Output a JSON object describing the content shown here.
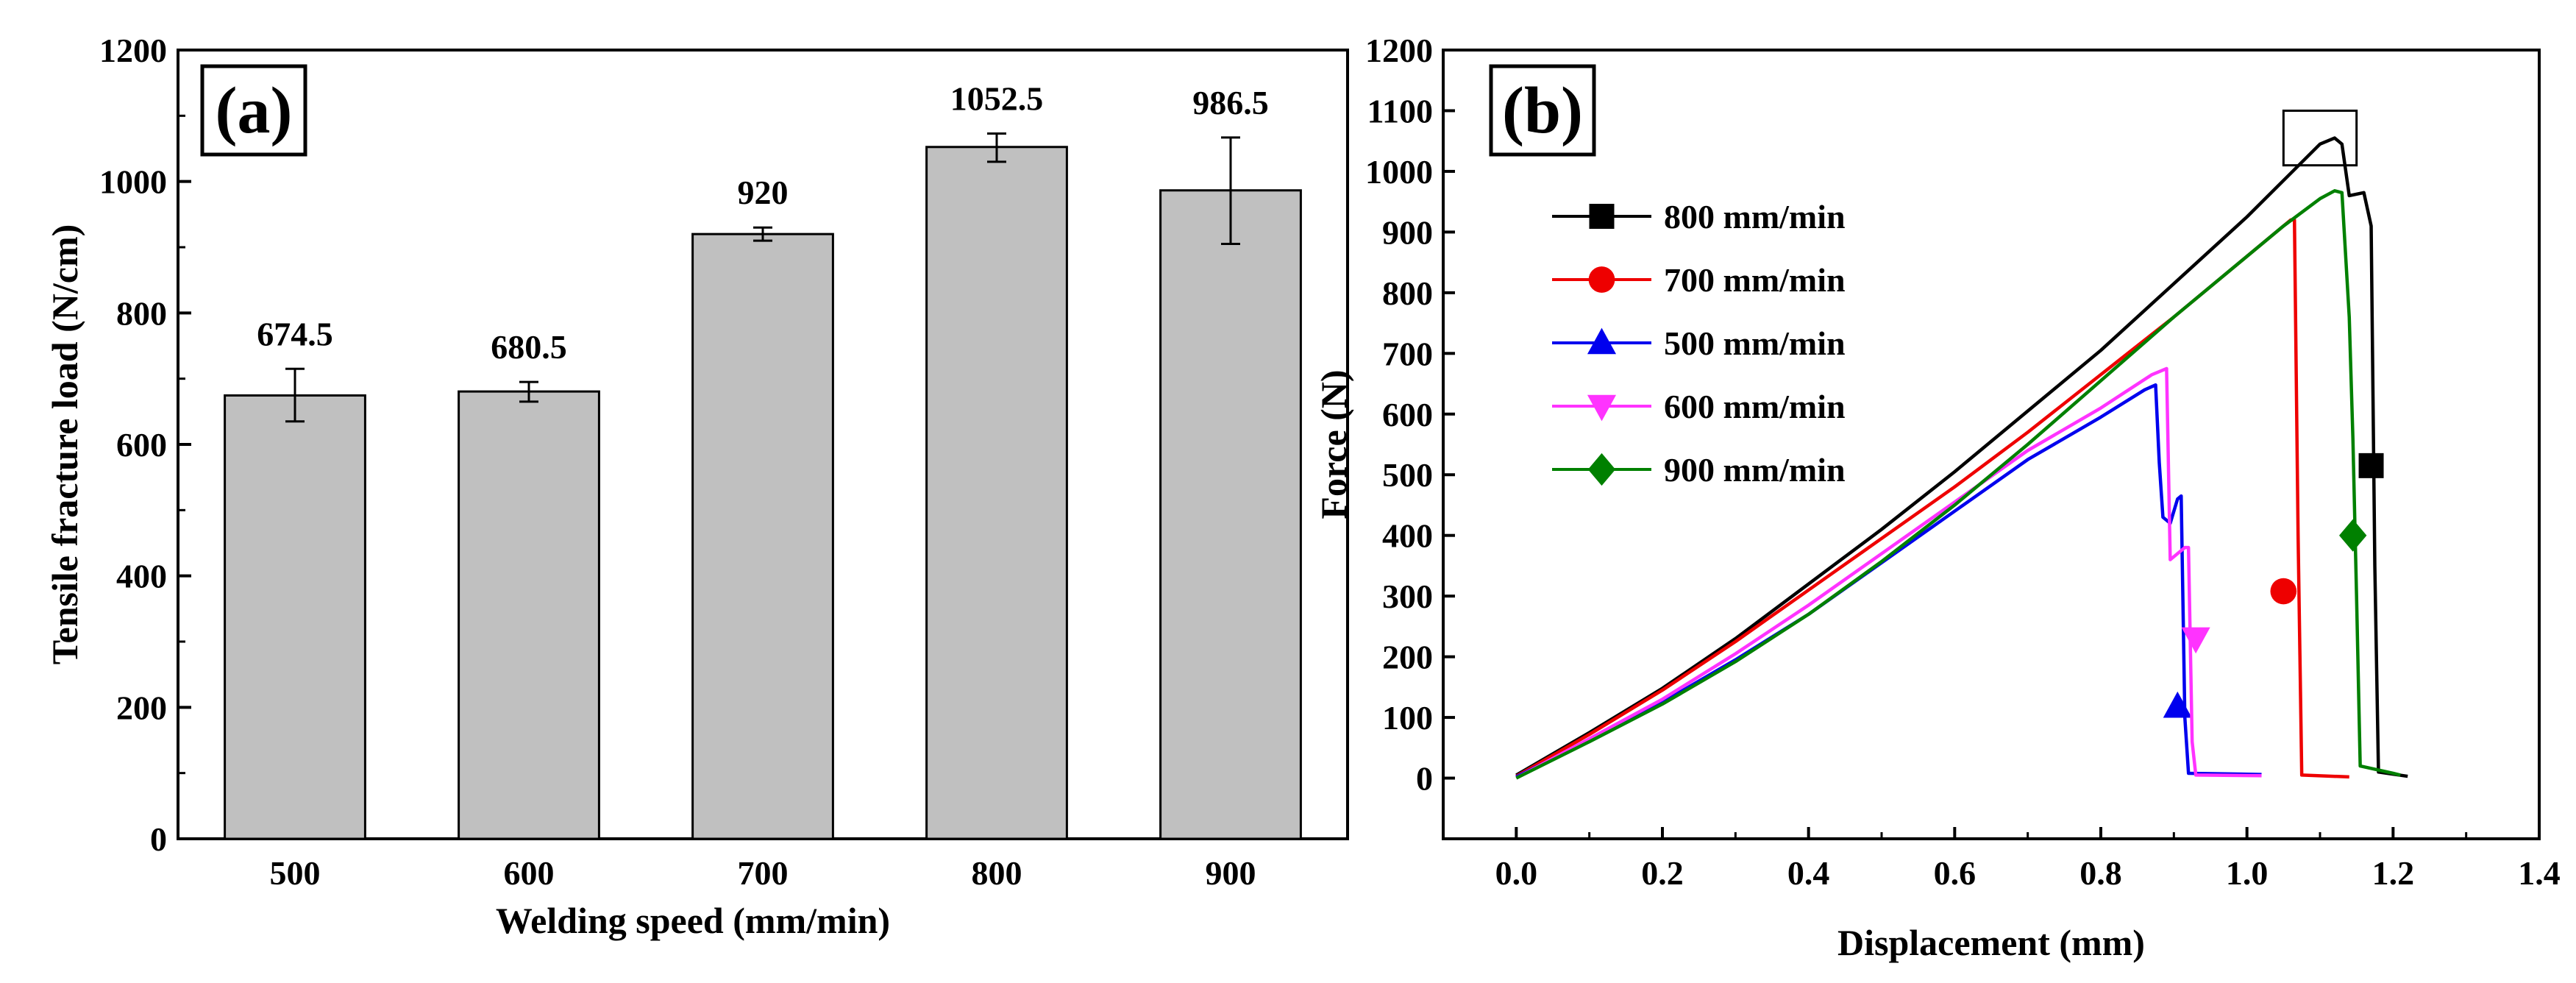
{
  "chart_data": [
    {
      "panel": "(a)",
      "type": "bar",
      "categories": [
        "500",
        "600",
        "700",
        "800",
        "900"
      ],
      "values": [
        674.5,
        680.5,
        920,
        1052.5,
        986.5
      ],
      "value_labels": [
        "674.5",
        "680.5",
        "920",
        "1052.5",
        "986.5"
      ],
      "error_low": [
        635,
        665,
        910,
        1030,
        905
      ],
      "error_high": [
        715,
        695,
        930,
        1073,
        1067
      ],
      "bar_color": "#c0c0c0",
      "xlabel": "Welding speed (mm/min)",
      "ylabel": "Tensile fracture load (N/cm)",
      "ylim": [
        0,
        1200
      ],
      "yticks": [
        "0",
        "200",
        "400",
        "600",
        "800",
        "1000",
        "1200"
      ]
    },
    {
      "panel": "(b)",
      "type": "line",
      "xlabel": "Displacement (mm)",
      "ylabel": "Force (N)",
      "xlim": [
        -0.1,
        1.4
      ],
      "ylim": [
        -100,
        1200
      ],
      "xticks": [
        "0.0",
        "0.2",
        "0.4",
        "0.6",
        "0.8",
        "1.0",
        "1.2",
        "1.4"
      ],
      "yticks": [
        "0",
        "100",
        "200",
        "300",
        "400",
        "500",
        "600",
        "700",
        "800",
        "900",
        "1000",
        "1100",
        "1200"
      ],
      "series": [
        {
          "name": "800 mm/min",
          "color": "#000000",
          "marker": "square",
          "marker_at": [
            1.17,
            515
          ],
          "points": [
            [
              0,
              5
            ],
            [
              0.1,
              75
            ],
            [
              0.2,
              148
            ],
            [
              0.3,
              230
            ],
            [
              0.4,
              320
            ],
            [
              0.5,
              410
            ],
            [
              0.6,
              505
            ],
            [
              0.7,
              605
            ],
            [
              0.8,
              705
            ],
            [
              0.9,
              815
            ],
            [
              1.0,
              925
            ],
            [
              1.05,
              985
            ],
            [
              1.1,
              1045
            ],
            [
              1.12,
              1055
            ],
            [
              1.13,
              1045
            ],
            [
              1.14,
              960
            ],
            [
              1.16,
              965
            ],
            [
              1.17,
              910
            ],
            [
              1.175,
              350
            ],
            [
              1.18,
              10
            ],
            [
              1.22,
              3
            ]
          ]
        },
        {
          "name": "700 mm/min",
          "color": "#ee0000",
          "marker": "circle",
          "marker_at": [
            1.05,
            308
          ],
          "points": [
            [
              0,
              3
            ],
            [
              0.1,
              72
            ],
            [
              0.2,
              145
            ],
            [
              0.3,
              225
            ],
            [
              0.4,
              310
            ],
            [
              0.5,
              395
            ],
            [
              0.6,
              480
            ],
            [
              0.7,
              570
            ],
            [
              0.8,
              665
            ],
            [
              0.9,
              760
            ],
            [
              1.0,
              860
            ],
            [
              1.06,
              920
            ],
            [
              1.065,
              920
            ],
            [
              1.07,
              400
            ],
            [
              1.075,
              5
            ],
            [
              1.14,
              2
            ]
          ]
        },
        {
          "name": "500 mm/min",
          "color": "#0000ee",
          "marker": "triangle-up",
          "marker_at": [
            0.905,
            118
          ],
          "points": [
            [
              0,
              2
            ],
            [
              0.1,
              62
            ],
            [
              0.2,
              125
            ],
            [
              0.3,
              195
            ],
            [
              0.4,
              270
            ],
            [
              0.5,
              355
            ],
            [
              0.6,
              440
            ],
            [
              0.7,
              525
            ],
            [
              0.8,
              595
            ],
            [
              0.86,
              640
            ],
            [
              0.875,
              648
            ],
            [
              0.88,
              520
            ],
            [
              0.885,
              430
            ],
            [
              0.895,
              420
            ],
            [
              0.905,
              460
            ],
            [
              0.91,
              465
            ],
            [
              0.915,
              100
            ],
            [
              0.92,
              8
            ],
            [
              1.02,
              6
            ]
          ]
        },
        {
          "name": "600 mm/min",
          "color": "#ff33ff",
          "marker": "triangle-down",
          "marker_at": [
            0.93,
            230
          ],
          "points": [
            [
              0,
              0
            ],
            [
              0.1,
              65
            ],
            [
              0.2,
              130
            ],
            [
              0.3,
              205
            ],
            [
              0.4,
              285
            ],
            [
              0.5,
              370
            ],
            [
              0.6,
              455
            ],
            [
              0.7,
              540
            ],
            [
              0.8,
              610
            ],
            [
              0.87,
              665
            ],
            [
              0.89,
              675
            ],
            [
              0.895,
              360
            ],
            [
              0.905,
              370
            ],
            [
              0.915,
              380
            ],
            [
              0.92,
              380
            ],
            [
              0.925,
              60
            ],
            [
              0.93,
              5
            ],
            [
              1.02,
              4
            ]
          ]
        },
        {
          "name": "900 mm/min",
          "color": "#008000",
          "marker": "diamond",
          "marker_at": [
            1.145,
            400
          ],
          "points": [
            [
              0,
              0
            ],
            [
              0.1,
              60
            ],
            [
              0.2,
              122
            ],
            [
              0.3,
              192
            ],
            [
              0.4,
              270
            ],
            [
              0.5,
              357
            ],
            [
              0.6,
              450
            ],
            [
              0.7,
              550
            ],
            [
              0.8,
              655
            ],
            [
              0.9,
              760
            ],
            [
              1.0,
              860
            ],
            [
              1.05,
              910
            ],
            [
              1.1,
              955
            ],
            [
              1.12,
              968
            ],
            [
              1.13,
              965
            ],
            [
              1.14,
              760
            ],
            [
              1.145,
              560
            ],
            [
              1.15,
              300
            ],
            [
              1.155,
              20
            ],
            [
              1.2,
              8
            ],
            [
              1.21,
              5
            ]
          ]
        }
      ],
      "highlight_box": {
        "x0": 1.05,
        "x1": 1.15,
        "y0": 1010,
        "y1": 1100
      }
    }
  ]
}
